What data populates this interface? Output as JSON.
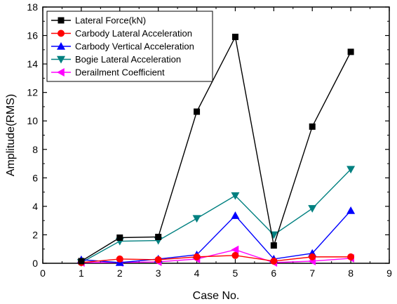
{
  "chart_data": {
    "type": "line",
    "xlabel": "Case No.",
    "ylabel": "Amplitude(RMS)",
    "xlim": [
      0,
      9
    ],
    "ylim": [
      0,
      18
    ],
    "x_ticks": [
      0,
      1,
      2,
      3,
      4,
      5,
      6,
      7,
      8,
      9
    ],
    "y_ticks": [
      0,
      2,
      4,
      6,
      8,
      10,
      12,
      14,
      16,
      18
    ],
    "grid": false,
    "legend_position": "top-left",
    "x": [
      1,
      2,
      3,
      4,
      5,
      6,
      7,
      8
    ],
    "series": [
      {
        "name": "Lateral Force(kN)",
        "color": "#000000",
        "marker": "square",
        "values": [
          0.15,
          1.8,
          1.85,
          10.65,
          15.9,
          1.25,
          9.6,
          14.85
        ]
      },
      {
        "name": "Carbody Lateral Acceleration",
        "color": "#ff0000",
        "marker": "circle",
        "values": [
          0.05,
          0.3,
          0.25,
          0.45,
          0.55,
          0.15,
          0.45,
          0.45
        ]
      },
      {
        "name": "Carbody Vertical Acceleration",
        "color": "#0000ff",
        "marker": "triangle-up",
        "values": [
          0.25,
          0.05,
          0.3,
          0.6,
          3.35,
          0.3,
          0.7,
          3.7
        ]
      },
      {
        "name": "Bogie Lateral Acceleration",
        "color": "#008080",
        "marker": "triangle-down",
        "values": [
          0.05,
          1.55,
          1.6,
          3.15,
          4.75,
          2.0,
          3.85,
          6.6
        ]
      },
      {
        "name": "Derailment Coefficient",
        "color": "#ff00ff",
        "marker": "triangle-left",
        "values": [
          0.05,
          0.05,
          0.1,
          0.3,
          0.95,
          0.05,
          0.15,
          0.35
        ]
      }
    ]
  }
}
